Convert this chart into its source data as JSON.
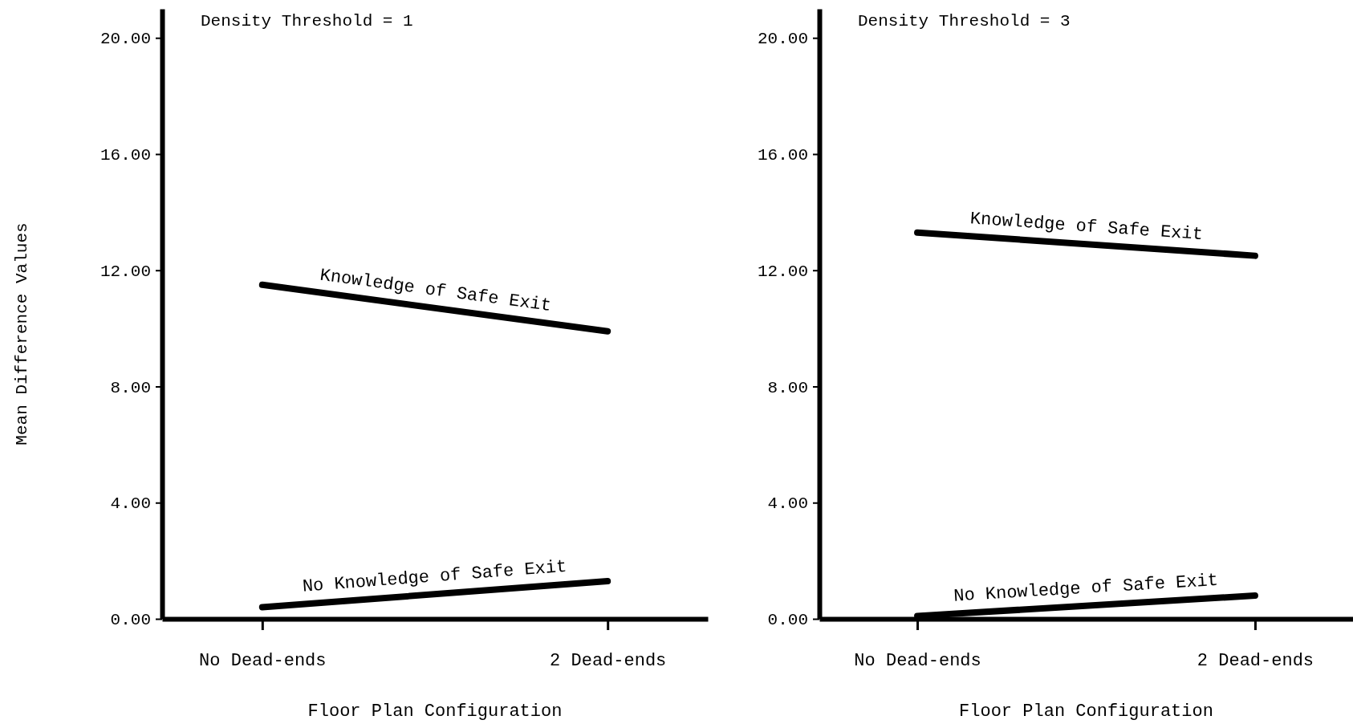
{
  "chart_data": [
    {
      "type": "line",
      "title": "Density Threshold = 1",
      "xlabel": "Floor Plan Configuration",
      "ylabel": "Mean Difference Values",
      "categories": [
        "No Dead-ends",
        "2 Dead-ends"
      ],
      "series": [
        {
          "name": "Knowledge of Safe Exit",
          "color": "#000000",
          "values": [
            11.5,
            9.9
          ]
        },
        {
          "name": "No Knowledge of Safe Exit",
          "color": "#000000",
          "values": [
            0.4,
            1.3
          ]
        }
      ],
      "ylim": [
        0,
        21
      ],
      "yticks": [
        {
          "value": 0,
          "label": "0.00"
        },
        {
          "value": 4,
          "label": "4.00"
        },
        {
          "value": 8,
          "label": "8.00"
        },
        {
          "value": 12,
          "label": "12.00"
        },
        {
          "value": 16,
          "label": "16.00"
        },
        {
          "value": 20,
          "label": "20.00"
        }
      ],
      "grid": false,
      "legend": false,
      "marker": "none",
      "line_style": "solid"
    },
    {
      "type": "line",
      "title": "Density Threshold = 3",
      "xlabel": "Floor Plan Configuration",
      "categories": [
        "No Dead-ends",
        "2 Dead-ends"
      ],
      "series": [
        {
          "name": "Knowledge of Safe Exit",
          "color": "#000000",
          "values": [
            13.3,
            12.5
          ]
        },
        {
          "name": "No Knowledge of Safe Exit",
          "color": "#000000",
          "values": [
            0.1,
            0.8
          ]
        }
      ],
      "ylim": [
        0,
        21
      ],
      "yticks": [
        {
          "value": 0,
          "label": "0.00"
        },
        {
          "value": 4,
          "label": "4.00"
        },
        {
          "value": 8,
          "label": "8.00"
        },
        {
          "value": 12,
          "label": "12.00"
        },
        {
          "value": 16,
          "label": "16.00"
        },
        {
          "value": 20,
          "label": "20.00"
        }
      ],
      "grid": false,
      "legend": false,
      "marker": "none",
      "line_style": "solid"
    }
  ]
}
